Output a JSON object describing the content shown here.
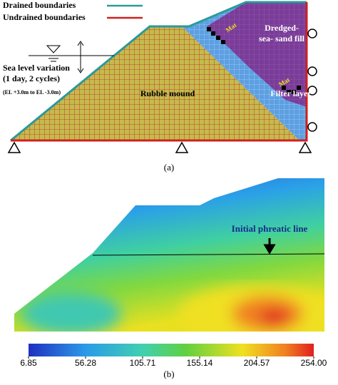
{
  "panel_a": {
    "legend": {
      "drained": "Drained boundaries",
      "undrained": "Undrained boundaries"
    },
    "sea_level": {
      "title": "Sea level variation",
      "cycles": "(1 day, 2 cycles)",
      "range": "(EL +3.0m to EL -3.0m)"
    },
    "regions": {
      "rubble": "Rubble mound",
      "filter": "Filter layer",
      "fill": "Dredged-\nsea- sand fill"
    },
    "mats": [
      "Mat",
      "Mat"
    ],
    "caption": "(a)"
  },
  "panel_b": {
    "annotation": "Initial phreatic line",
    "colorbar": {
      "ticks": [
        6.85,
        56.28,
        105.71,
        155.14,
        204.57,
        {
          "value": 254,
          "label": "254.00"
        }
      ]
    },
    "caption": "(b)"
  }
}
